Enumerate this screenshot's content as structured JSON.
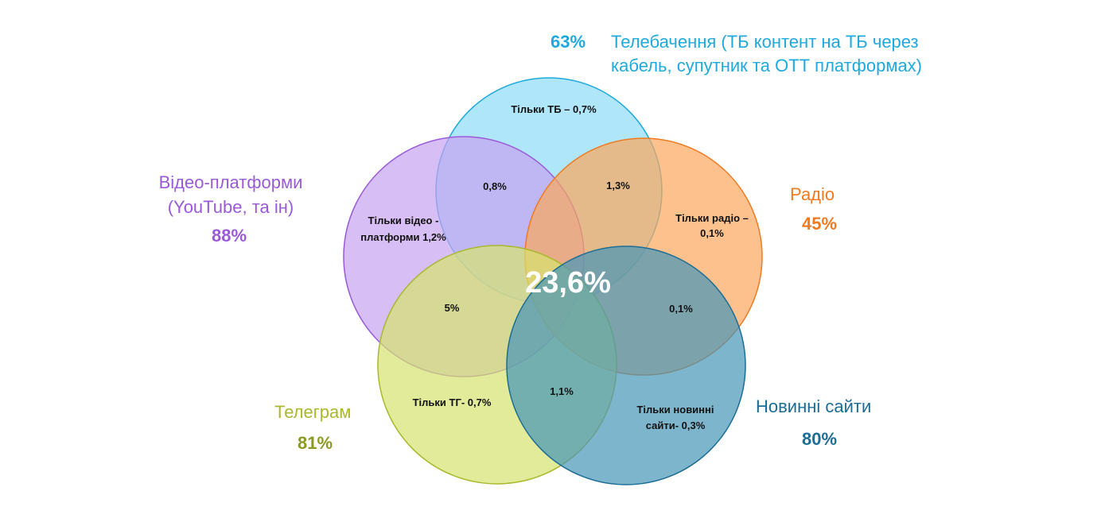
{
  "sets": {
    "tv": {
      "title": "Телебачення (ТБ контент на ТБ через кабель, супутник та ОТТ платформах)",
      "title_lines": [
        "Телебачення (ТБ контент на ТБ через",
        "кабель, супутник та ОТТ платформах)"
      ],
      "percent": "63%",
      "only_label": "Тільки ТБ – 0,7%",
      "color": "#1fa9dc",
      "fill": "#8fdcf8"
    },
    "video": {
      "title": "Відео-платформи (YouTube, та ін)",
      "title_lines": [
        "Відео-платформи",
        "(YouTube, та ін)"
      ],
      "percent": "88%",
      "only_label_lines": [
        "Тільки відео -",
        "платформи 1,2%"
      ],
      "color": "#9a5ad8",
      "fill": "#c6a2f0"
    },
    "radio": {
      "title": "Радіо",
      "percent": "45%",
      "only_label_lines": [
        "Тільки радіо –",
        "0,1%"
      ],
      "color": "#ef7a20",
      "fill": "#fba75b"
    },
    "telegram": {
      "title": "Телеграм",
      "percent": "81%",
      "only_label": "Тільки ТГ- 0,7%",
      "color": "#a9b82c",
      "fill": "#d6e26e"
    },
    "news": {
      "title": "Новинні сайти",
      "percent": "80%",
      "only_label_lines": [
        "Тільки новинні",
        "сайти- 0,3%"
      ],
      "color": "#1c6d96",
      "fill": "#4696b8"
    }
  },
  "intersections": {
    "tv_video": "0,8%",
    "tv_radio": "1,3%",
    "video_telegram": "5%",
    "radio_news": "0,1%",
    "telegram_news": "1,1%"
  },
  "center": "23,6%"
}
